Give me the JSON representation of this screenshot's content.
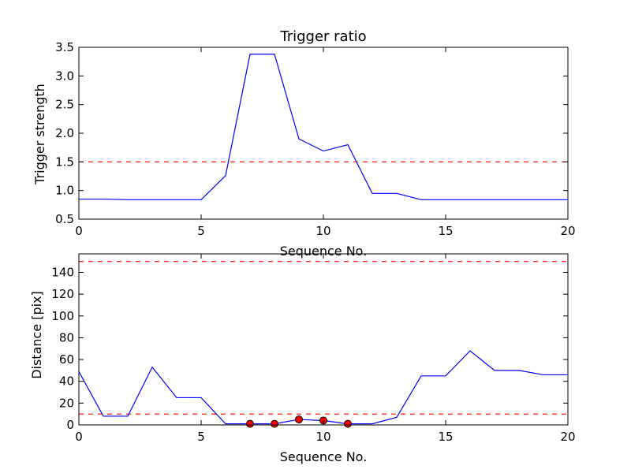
{
  "chart_data": [
    {
      "type": "line",
      "title": "Trigger ratio",
      "xlabel": "Sequence No.",
      "ylabel": "Trigger strength",
      "xlim": [
        0,
        20
      ],
      "ylim": [
        0.5,
        3.5
      ],
      "xticks": [
        0,
        5,
        10,
        15,
        20
      ],
      "xtick_labels": [
        "0",
        "5",
        "10",
        "15",
        "20"
      ],
      "yticks": [
        0.5,
        1.0,
        1.5,
        2.0,
        2.5,
        3.0,
        3.5
      ],
      "ytick_labels": [
        "0.5",
        "1.0",
        "1.5",
        "2.0",
        "2.5",
        "3.0",
        "3.5"
      ],
      "series": [
        {
          "color": "#0000ff",
          "x": [
            0,
            1,
            2,
            3,
            4,
            5,
            6,
            7,
            8,
            9,
            10,
            11,
            12,
            13,
            14,
            15,
            16,
            17,
            18,
            19,
            20
          ],
          "values": [
            0.85,
            0.85,
            0.84,
            0.84,
            0.84,
            0.84,
            1.26,
            3.38,
            3.38,
            1.9,
            1.69,
            1.8,
            0.95,
            0.95,
            0.84,
            0.84,
            0.84,
            0.84,
            0.84,
            0.84,
            0.84
          ]
        }
      ],
      "hlines": [
        {
          "y": 1.5,
          "color": "#ff0000",
          "style": "dashed"
        }
      ],
      "grid": false
    },
    {
      "type": "line",
      "title": "",
      "xlabel": "Sequence No.",
      "ylabel": "Distance [pix]",
      "xlim": [
        0,
        20
      ],
      "ylim": [
        0,
        157
      ],
      "xticks": [
        0,
        5,
        10,
        15,
        20
      ],
      "xtick_labels": [
        "0",
        "5",
        "10",
        "15",
        "20"
      ],
      "yticks": [
        0,
        20,
        40,
        60,
        80,
        100,
        120,
        140
      ],
      "ytick_labels": [
        "0",
        "20",
        "40",
        "60",
        "80",
        "100",
        "120",
        "140"
      ],
      "series": [
        {
          "color": "#0000ff",
          "x": [
            0,
            1,
            2,
            3,
            4,
            5,
            6,
            7,
            8,
            9,
            10,
            11,
            12,
            13,
            14,
            15,
            16,
            17,
            18,
            19,
            20
          ],
          "values": [
            49,
            8,
            8,
            53,
            25,
            25,
            1,
            1,
            1,
            5,
            4,
            1,
            1,
            7,
            45,
            45,
            68,
            50,
            50,
            46,
            46
          ]
        }
      ],
      "markers": {
        "color": "#ff0000",
        "x": [
          7,
          8,
          9,
          10,
          11
        ],
        "values": [
          1,
          1,
          5,
          4,
          1
        ]
      },
      "hlines": [
        {
          "y": 150,
          "color": "#ff0000",
          "style": "dashed"
        },
        {
          "y": 10,
          "color": "#ff0000",
          "style": "dashed"
        }
      ],
      "grid": false
    }
  ]
}
